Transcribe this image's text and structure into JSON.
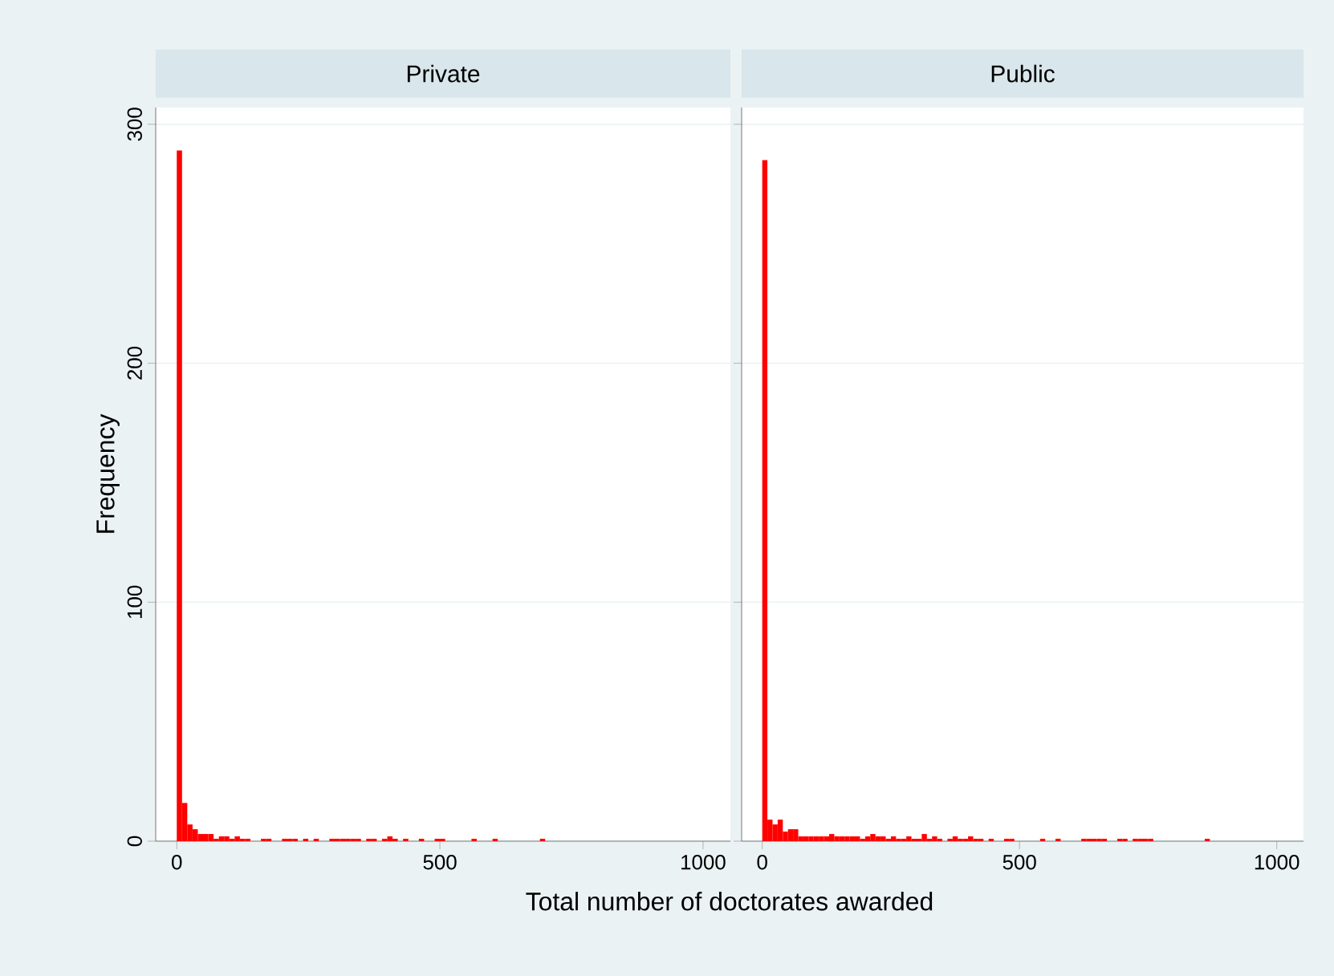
{
  "chart_data": [
    {
      "type": "histogram",
      "title": "Private",
      "ylabel": "Frequency",
      "xlabel": "Total number of doctorates awarded",
      "color": "#ff0000",
      "grid": "y",
      "xlim": [
        -40,
        1052
      ],
      "ylim": [
        0,
        307
      ],
      "xticks": [
        0,
        500,
        1000
      ],
      "yticks": [
        0,
        100,
        200,
        300
      ],
      "bins": [
        0,
        10,
        20,
        30,
        40,
        50,
        60,
        70,
        80,
        90,
        100,
        110,
        120,
        130,
        140,
        150,
        160,
        170,
        180,
        190,
        200,
        210,
        220,
        230,
        240,
        250,
        260,
        270,
        280,
        290,
        300,
        310,
        320,
        330,
        340,
        350,
        360,
        370,
        380,
        390,
        400,
        410,
        420,
        430,
        440,
        450,
        460,
        470,
        480,
        490,
        500,
        510,
        520,
        530,
        540,
        550,
        560,
        570,
        580,
        590,
        600,
        610,
        620,
        630,
        640,
        650,
        660,
        670,
        680,
        690,
        700
      ],
      "values": [
        289,
        16,
        7,
        5,
        3,
        3,
        3,
        1,
        2,
        2,
        1,
        2,
        1,
        1,
        0,
        0,
        1,
        1,
        0,
        0,
        1,
        1,
        1,
        0,
        1,
        0,
        1,
        0,
        0,
        1,
        1,
        1,
        1,
        1,
        1,
        0,
        1,
        1,
        0,
        1,
        2,
        1,
        0,
        1,
        0,
        0,
        1,
        0,
        0,
        1,
        1,
        0,
        0,
        0,
        0,
        0,
        1,
        0,
        0,
        0,
        1,
        0,
        0,
        0,
        0,
        0,
        0,
        0,
        0,
        1
      ]
    },
    {
      "type": "histogram",
      "title": "Public",
      "color": "#ff0000",
      "grid": "y",
      "tick_labels": "x",
      "xlim": [
        -40,
        1052
      ],
      "ylim": [
        0,
        307
      ],
      "xticks": [
        0,
        500,
        1000
      ],
      "yticks": [
        0,
        100,
        200,
        300
      ],
      "bins": [
        0,
        10,
        20,
        30,
        40,
        50,
        60,
        70,
        80,
        90,
        100,
        110,
        120,
        130,
        140,
        150,
        160,
        170,
        180,
        190,
        200,
        210,
        220,
        230,
        240,
        250,
        260,
        270,
        280,
        290,
        300,
        310,
        320,
        330,
        340,
        350,
        360,
        370,
        380,
        390,
        400,
        410,
        420,
        430,
        440,
        450,
        460,
        470,
        480,
        490,
        500,
        510,
        520,
        530,
        540,
        550,
        560,
        570,
        580,
        590,
        600,
        610,
        620,
        630,
        640,
        650,
        660,
        670,
        680,
        690,
        700,
        710,
        720,
        730,
        740,
        750,
        760,
        770,
        780,
        790,
        800,
        810,
        820,
        830,
        840,
        850,
        860,
        870
      ],
      "values": [
        285,
        9,
        7,
        9,
        4,
        5,
        5,
        2,
        2,
        2,
        2,
        2,
        2,
        3,
        2,
        2,
        2,
        2,
        2,
        1,
        2,
        3,
        2,
        2,
        1,
        2,
        1,
        1,
        2,
        1,
        1,
        3,
        1,
        2,
        1,
        0,
        1,
        2,
        1,
        1,
        2,
        1,
        1,
        0,
        1,
        0,
        0,
        1,
        1,
        0,
        0,
        0,
        0,
        0,
        1,
        0,
        0,
        1,
        0,
        0,
        0,
        0,
        1,
        1,
        1,
        1,
        1,
        0,
        0,
        1,
        1,
        0,
        1,
        1,
        1,
        1,
        0,
        0,
        0,
        0,
        0,
        0,
        0,
        0,
        0,
        0,
        1
      ]
    }
  ]
}
